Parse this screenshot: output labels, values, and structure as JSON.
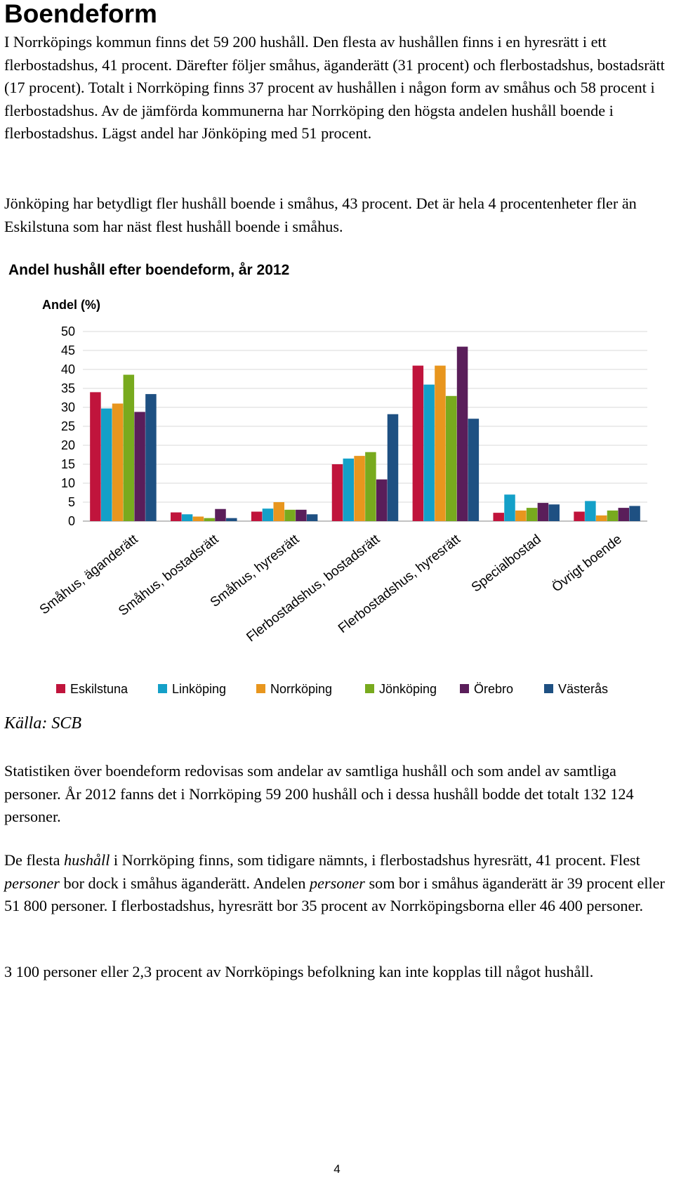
{
  "heading": "Boendeform",
  "paragraphs": {
    "p1": "I Norrköpings kommun finns det 59 200 hushåll. Den flesta av hushållen finns i en hyresrätt i ett flerbostadshus, 41 procent. Därefter följer småhus, äganderätt (31 procent) och flerbostadshus, bostadsrätt (17 procent). Totalt i Norrköping finns 37 procent av hushållen i någon form av småhus och 58 procent i flerbostadshus. Av de jämförda kommunerna har Norrköping den högsta andelen hushåll boende i flerbostadshus. Lägst andel har Jönköping med 51 procent.",
    "p2": "Jönköping har betydligt fler hushåll boende i småhus, 43 procent. Det är hela 4 procentenheter fler än Eskilstuna som har näst flest hushåll boende i småhus.",
    "p3": "Statistiken över boendeform redovisas som andelar av samtliga hushåll och som andel av samtliga personer. År 2012 fanns det i Norrköping 59 200 hushåll och i dessa hushåll bodde det totalt 132 124 personer.",
    "p4": {
      "a": "De flesta ",
      "b": "hushåll",
      "c": " i Norrköping finns, som tidigare nämnts, i flerbostadshus hyresrätt, 41 procent. Flest ",
      "d": "personer",
      "e": " bor dock i småhus äganderätt. Andelen ",
      "f": "personer",
      "g": " som bor i småhus äganderätt är 39 procent eller 51 800 personer. I flerbostadshus, hyresrätt bor 35 procent av Norrköpingsborna eller 46 400 personer."
    },
    "p5": "3 100 personer eller 2,3 procent av Norrköpings befolkning kan inte kopplas till något hushåll."
  },
  "source": "Källa: SCB",
  "page_number": "4",
  "colors": {
    "Eskilstuna": "#c0143c",
    "Linköping": "#14a0c8",
    "Norrköping": "#e8961e",
    "Jönköping": "#78aa1e",
    "Örebro": "#5a1e5a",
    "Västerås": "#1e5082",
    "grid": "#d9d9d9",
    "axis": "#868686"
  },
  "chart_data": {
    "type": "bar",
    "title": "Andel hushåll efter boendeform, år 2012",
    "ylabel": "Andel (%)",
    "xlabel": "",
    "ylim": [
      0,
      50
    ],
    "yticks": [
      0,
      5,
      10,
      15,
      20,
      25,
      30,
      35,
      40,
      45,
      50
    ],
    "grid": true,
    "legend_position": "bottom",
    "categories": [
      "Småhus, äganderätt",
      "Småhus, bostadsrätt",
      "Småhus, hyresrätt",
      "Flerbostadshus, bostadsrätt",
      "Flerbostadshus, hyresrätt",
      "Specialbostad",
      "Övrigt boende"
    ],
    "series": [
      {
        "name": "Eskilstuna",
        "values": [
          34,
          2.3,
          2.5,
          15,
          41,
          2.2,
          2.5
        ]
      },
      {
        "name": "Linköping",
        "values": [
          29.7,
          1.8,
          3.3,
          16.5,
          36,
          7,
          5.3
        ]
      },
      {
        "name": "Norrköping",
        "values": [
          31,
          1.2,
          5,
          17.2,
          41,
          2.8,
          1.5
        ]
      },
      {
        "name": "Jönköping",
        "values": [
          38.6,
          0.8,
          3,
          18.2,
          33,
          3.5,
          2.8
        ]
      },
      {
        "name": "Örebro",
        "values": [
          28.8,
          3.2,
          3,
          11,
          46,
          4.8,
          3.5
        ]
      },
      {
        "name": "Västerås",
        "values": [
          33.5,
          0.8,
          1.8,
          28.2,
          27,
          4.4,
          4
        ]
      }
    ]
  }
}
